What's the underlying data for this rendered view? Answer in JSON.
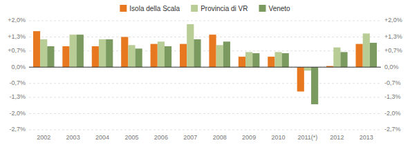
{
  "chart_data": {
    "type": "bar",
    "categories": [
      "2002",
      "2003",
      "2004",
      "2005",
      "2006",
      "2007",
      "2008",
      "2009",
      "2010",
      "2011(*)",
      "2012",
      "2013"
    ],
    "series": [
      {
        "name": "Isola della Scala",
        "color": "#E87820",
        "values": [
          1.55,
          0.9,
          0.9,
          1.3,
          1.0,
          1.0,
          1.4,
          0.45,
          0.45,
          -1.05,
          0.05,
          1.0
        ]
      },
      {
        "name": "Provincia di VR",
        "color": "#B8CC96",
        "values": [
          1.2,
          1.4,
          1.2,
          0.95,
          1.1,
          1.85,
          0.95,
          0.65,
          0.65,
          -0.15,
          0.85,
          1.45
        ]
      },
      {
        "name": "Veneto",
        "color": "#7A9A60",
        "values": [
          0.9,
          1.4,
          1.2,
          0.8,
          0.9,
          1.2,
          1.1,
          0.6,
          0.6,
          -1.6,
          0.65,
          1.05
        ]
      }
    ],
    "ylim": [
      -2.7,
      2.0
    ],
    "yticks": [
      {
        "value": -2.7,
        "label": "-2,7%"
      },
      {
        "value": -2.0,
        "label": "-2,0%"
      },
      {
        "value": -1.3,
        "label": "-1,3%"
      },
      {
        "value": -0.7,
        "label": "-0,7%"
      },
      {
        "value": 0.0,
        "label": "0,0%"
      },
      {
        "value": 0.7,
        "label": "+0,7%"
      },
      {
        "value": 1.3,
        "label": "+1,3%"
      },
      {
        "value": 2.0,
        "label": "+2,0%"
      }
    ],
    "y2lim": [
      -2.7,
      2.0
    ],
    "y2ticks": [
      {
        "value": -2.7,
        "label": "-2,7%"
      },
      {
        "value": -2.0,
        "label": "-2,0%"
      },
      {
        "value": -1.3,
        "label": "-1,3%"
      },
      {
        "value": -0.7,
        "label": "-0,7%"
      },
      {
        "value": 0.0,
        "label": "0,0%"
      },
      {
        "value": 0.7,
        "label": "+0,7%"
      },
      {
        "value": 1.3,
        "label": "+1,3%"
      },
      {
        "value": 2.0,
        "label": "+2,0%"
      }
    ],
    "grid": true,
    "legend": "top"
  }
}
